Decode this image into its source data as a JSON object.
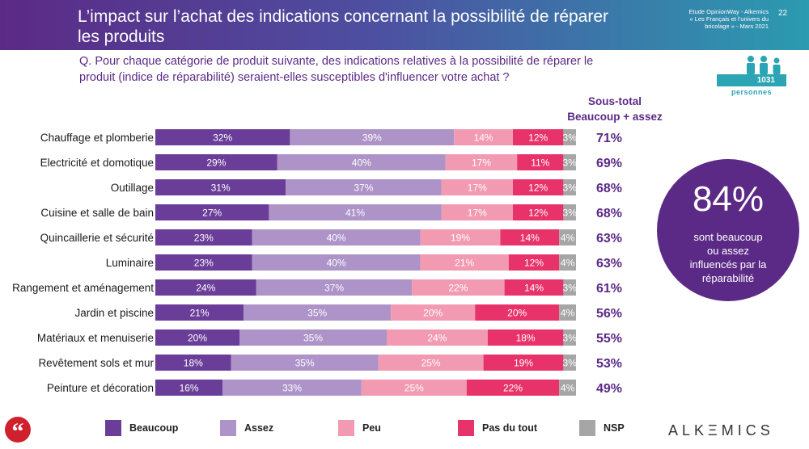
{
  "header": {
    "title": "L’impact sur l’achat des indications concernant la possibilité de réparer les produits",
    "study_lines": [
      "Etude OpinionWay - Alkemics",
      "« Les Français et l’univers du",
      "bricolage » - Mars 2021"
    ],
    "page_number": "22"
  },
  "question": "Q. Pour chaque catégorie de produit suivante, des indications relatives à la possibilité de réparer le produit (indice de réparabilité) seraient-elles susceptibles d'influencer votre achat ?",
  "badge": {
    "count": "1031",
    "label": "personnes"
  },
  "subtotal_header": [
    "Sous-total",
    "Beaucoup + assez"
  ],
  "highlight": {
    "value": "84%",
    "text_lines": [
      "sont beaucoup",
      "ou assez",
      "influencés par la",
      "réparabilité"
    ]
  },
  "footer": {
    "quote_symbol": "“",
    "logo": "ALKΞMICS"
  },
  "colors": {
    "Beaucoup": "#6a3d98",
    "Assez": "#ad93c8",
    "Peu": "#f29ab2",
    "Pas du tout": "#e8336a",
    "NSP": "#a6a6a6"
  },
  "chart_data": {
    "type": "bar",
    "orientation": "horizontal",
    "stacked": "100%",
    "categories": [
      "Chauffage et plomberie",
      "Electricité et domotique",
      "Outillage",
      "Cuisine et salle de bain",
      "Quincaillerie et sécurité",
      "Luminaire",
      "Rangement et aménagement",
      "Jardin et piscine",
      "Matériaux et menuiserie",
      "Revêtement sols et mur",
      "Peinture et décoration"
    ],
    "series": [
      {
        "name": "Beaucoup",
        "values": [
          32,
          29,
          31,
          27,
          23,
          23,
          24,
          21,
          20,
          18,
          16
        ]
      },
      {
        "name": "Assez",
        "values": [
          39,
          40,
          37,
          41,
          40,
          40,
          37,
          35,
          35,
          35,
          33
        ]
      },
      {
        "name": "Peu",
        "values": [
          14,
          17,
          17,
          17,
          19,
          21,
          22,
          20,
          24,
          25,
          25
        ]
      },
      {
        "name": "Pas du tout",
        "values": [
          12,
          11,
          12,
          12,
          14,
          12,
          14,
          20,
          18,
          19,
          22
        ]
      },
      {
        "name": "NSP",
        "values": [
          3,
          3,
          3,
          3,
          4,
          4,
          3,
          4,
          3,
          3,
          4
        ]
      }
    ],
    "subtotal_labels": [
      "71%",
      "69%",
      "68%",
      "68%",
      "63%",
      "63%",
      "61%",
      "56%",
      "55%",
      "53%",
      "49%"
    ],
    "legend_position": "bottom",
    "grid": false
  }
}
